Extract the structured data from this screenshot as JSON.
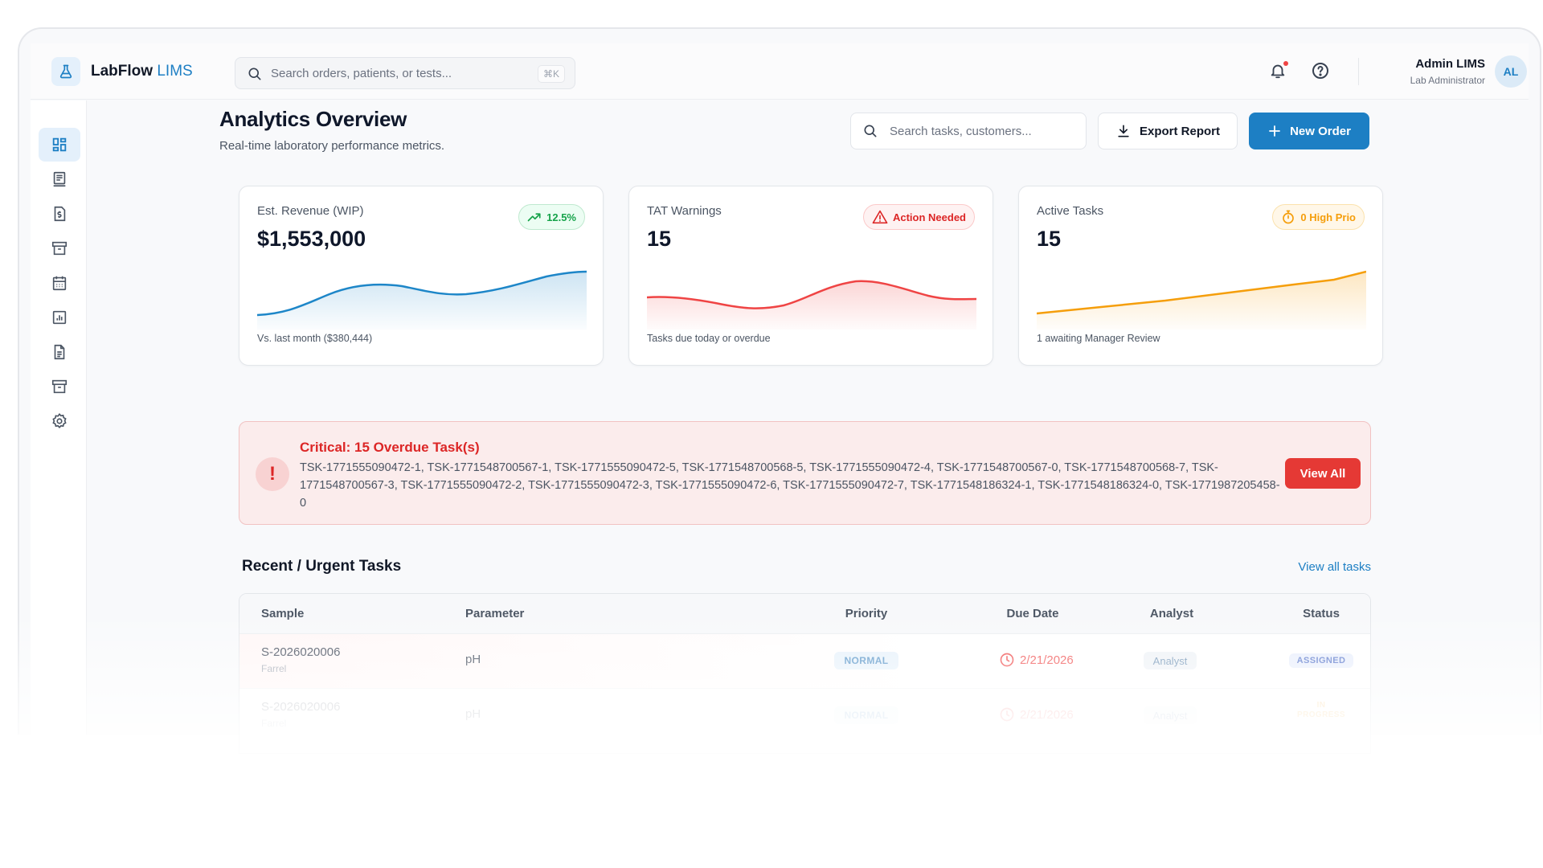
{
  "app": {
    "name": "LabFlow",
    "name_accent": "LIMS"
  },
  "topbar": {
    "search_placeholder": "Search orders, patients, or tests...",
    "search_shortcut": "⌘K",
    "user_name": "Admin LIMS",
    "user_role": "Lab Administrator",
    "avatar_initials": "AL"
  },
  "sidebar": {
    "items": [
      {
        "icon": "dashboard-icon",
        "active": true
      },
      {
        "icon": "orders-icon",
        "active": false
      },
      {
        "icon": "invoice-icon",
        "active": false
      },
      {
        "icon": "archive-icon",
        "active": false
      },
      {
        "icon": "calendar-icon",
        "active": false
      },
      {
        "icon": "reports-chart-icon",
        "active": false
      },
      {
        "icon": "document-icon",
        "active": false
      },
      {
        "icon": "inventory-icon",
        "active": false
      },
      {
        "icon": "settings-icon",
        "active": false
      }
    ]
  },
  "page": {
    "title": "Analytics Overview",
    "subtitle": "Real-time laboratory performance metrics.",
    "search_placeholder": "Search tasks, customers...",
    "export_label": "Export Report",
    "new_order_label": "New Order"
  },
  "cards": [
    {
      "label": "Est. Revenue (WIP)",
      "value": "$1,553,000",
      "badge": "12.5%",
      "footer": "Vs. last month ($380,444)",
      "color": "#1d86c8"
    },
    {
      "label": "TAT Warnings",
      "value": "15",
      "badge": "Action Needed",
      "footer": "Tasks due today or overdue",
      "color": "#ef4444"
    },
    {
      "label": "Active Tasks",
      "value": "15",
      "badge": "0 High Prio",
      "footer": "1 awaiting Manager Review",
      "color": "#f59e0b"
    }
  ],
  "alert": {
    "title": "Critical: 15 Overdue Task(s)",
    "body": "TSK-1771555090472-1, TSK-1771548700567-1, TSK-1771555090472-5, TSK-1771548700568-5, TSK-1771555090472-4, TSK-1771548700567-0, TSK-1771548700568-7, TSK-1771548700567-3, TSK-1771555090472-2, TSK-1771555090472-3, TSK-1771555090472-6, TSK-1771555090472-7, TSK-1771548186324-1, TSK-1771548186324-0, TSK-1771987205458-0",
    "button": "View All"
  },
  "tasks": {
    "title": "Recent / Urgent Tasks",
    "link": "View all tasks",
    "columns": [
      "Sample",
      "Parameter",
      "Priority",
      "Due Date",
      "Analyst",
      "Status"
    ],
    "rows": [
      {
        "sample": "S-2026020006",
        "customer": "Farrel",
        "parameter": "pH",
        "priority": "NORMAL",
        "due": "2/21/2026",
        "analyst": "Analyst",
        "status": "ASSIGNED"
      },
      {
        "sample": "S-2026020006",
        "customer": "Farrel",
        "parameter": "pH",
        "priority": "NORMAL",
        "due": "2/21/2026",
        "analyst": "Analyst",
        "status_line1": "IN",
        "status_line2": "PROGRESS"
      }
    ]
  }
}
